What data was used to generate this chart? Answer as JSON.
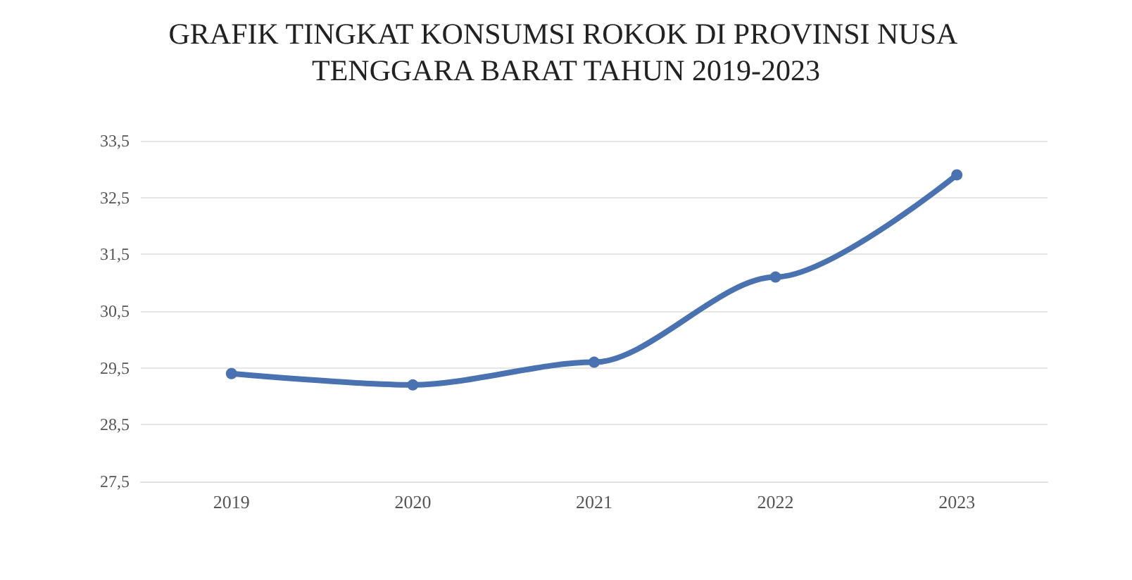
{
  "chart_data": {
    "type": "line",
    "title": "GRAFIK TINGKAT KONSUMSI ROKOK DI PROVINSI NUSA TENGGARA BARAT TAHUN 2019-2023",
    "categories": [
      "2019",
      "2020",
      "2021",
      "2022",
      "2023"
    ],
    "series": [
      {
        "color": "#4a72b0",
        "values": [
          29.4,
          29.2,
          29.6,
          31.1,
          32.9
        ]
      }
    ],
    "ylim": [
      27.5,
      33.5
    ],
    "yticks": [
      {
        "value": 27.5,
        "label": "27,5"
      },
      {
        "value": 28.5,
        "label": "28,5"
      },
      {
        "value": 29.5,
        "label": "29,5"
      },
      {
        "value": 30.5,
        "label": "30,5"
      },
      {
        "value": 31.5,
        "label": "31,5"
      },
      {
        "value": 32.5,
        "label": "32,5"
      },
      {
        "value": 33.5,
        "label": "33,5"
      }
    ],
    "grid": "y",
    "marker": "circle",
    "line_style": "solid"
  }
}
